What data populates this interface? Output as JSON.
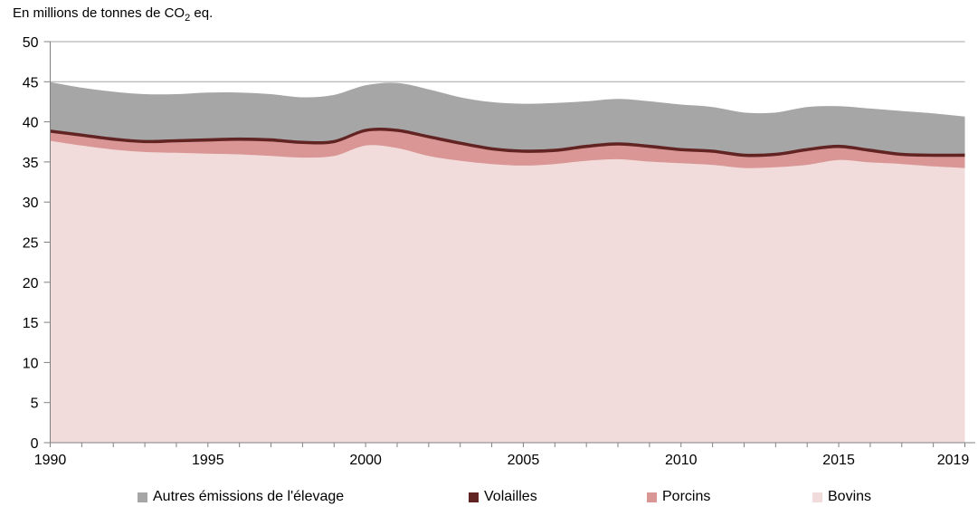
{
  "title": {
    "prefix": "En millions de tonnes de CO",
    "subscript": "2",
    "suffix": " eq."
  },
  "y_axis": {
    "tick_labels": [
      "0",
      "5",
      "10",
      "15",
      "20",
      "25",
      "30",
      "35",
      "40",
      "45",
      "50"
    ]
  },
  "x_axis": {
    "tick_labels": [
      "1990",
      "1995",
      "2000",
      "2005",
      "2010",
      "2015",
      "2019"
    ]
  },
  "legend": [
    {
      "label": "Autres émissions de l'élevage",
      "color": "#a6a6a6"
    },
    {
      "label": "Volailles",
      "color": "#622423"
    },
    {
      "label": "Porcins",
      "color": "#d99694"
    },
    {
      "label": "Bovins",
      "color": "#f2dcdb"
    }
  ],
  "colors": {
    "grid": "#a6a6a6",
    "axis": "#808080",
    "text": "#000000",
    "background": "#ffffff"
  },
  "chart_data": {
    "type": "area",
    "stacked": true,
    "title": "En millions de tonnes de CO2 eq.",
    "xlabel": "",
    "ylabel": "En millions de tonnes de CO2 eq.",
    "ylim": [
      0,
      50
    ],
    "ytick_step": 5,
    "grid": true,
    "legend_position": "bottom",
    "x": [
      1990,
      1991,
      1992,
      1993,
      1994,
      1995,
      1996,
      1997,
      1998,
      1999,
      2000,
      2001,
      2002,
      2003,
      2004,
      2005,
      2006,
      2007,
      2008,
      2009,
      2010,
      2011,
      2012,
      2013,
      2014,
      2015,
      2016,
      2017,
      2018,
      2019
    ],
    "x_labeled_ticks": [
      1990,
      1995,
      2000,
      2005,
      2010,
      2015,
      2019
    ],
    "series": [
      {
        "name": "Bovins",
        "color": "#f2dcdb",
        "values": [
          37.7,
          37.1,
          36.6,
          36.3,
          36.2,
          36.1,
          36.0,
          35.8,
          35.6,
          35.8,
          37.1,
          36.8,
          35.8,
          35.2,
          34.8,
          34.6,
          34.8,
          35.2,
          35.4,
          35.1,
          34.9,
          34.7,
          34.3,
          34.4,
          34.7,
          35.3,
          35.0,
          34.8,
          34.5,
          34.3
        ]
      },
      {
        "name": "Porcins",
        "color": "#d99694",
        "values": [
          1.0,
          1.1,
          1.1,
          1.1,
          1.3,
          1.5,
          1.7,
          1.8,
          1.7,
          1.6,
          1.7,
          2.0,
          2.2,
          2.0,
          1.7,
          1.6,
          1.5,
          1.6,
          1.7,
          1.7,
          1.5,
          1.5,
          1.4,
          1.4,
          1.7,
          1.5,
          1.3,
          1.0,
          1.2,
          1.4
        ]
      },
      {
        "name": "Volailles",
        "color": "#622423",
        "values": [
          0.4,
          0.4,
          0.4,
          0.4,
          0.4,
          0.4,
          0.4,
          0.4,
          0.4,
          0.4,
          0.4,
          0.4,
          0.4,
          0.4,
          0.4,
          0.4,
          0.4,
          0.4,
          0.4,
          0.4,
          0.4,
          0.4,
          0.4,
          0.4,
          0.4,
          0.4,
          0.4,
          0.4,
          0.4,
          0.4
        ]
      },
      {
        "name": "Autres émissions de l'élevage",
        "color": "#a6a6a6",
        "values": [
          5.8,
          5.6,
          5.6,
          5.6,
          5.5,
          5.6,
          5.5,
          5.4,
          5.3,
          5.5,
          5.3,
          5.6,
          5.6,
          5.4,
          5.5,
          5.6,
          5.6,
          5.3,
          5.3,
          5.3,
          5.3,
          5.2,
          5.0,
          4.9,
          5.0,
          4.7,
          4.9,
          5.1,
          4.9,
          4.5
        ]
      }
    ],
    "totals_approx": [
      44.9,
      44.2,
      43.7,
      43.4,
      43.4,
      43.6,
      43.6,
      43.4,
      43.0,
      43.3,
      44.5,
      44.8,
      44.0,
      43.0,
      42.4,
      42.2,
      42.3,
      42.5,
      42.8,
      42.5,
      42.1,
      41.8,
      41.1,
      41.1,
      41.8,
      41.9,
      41.6,
      41.3,
      41.0,
      40.6
    ]
  }
}
